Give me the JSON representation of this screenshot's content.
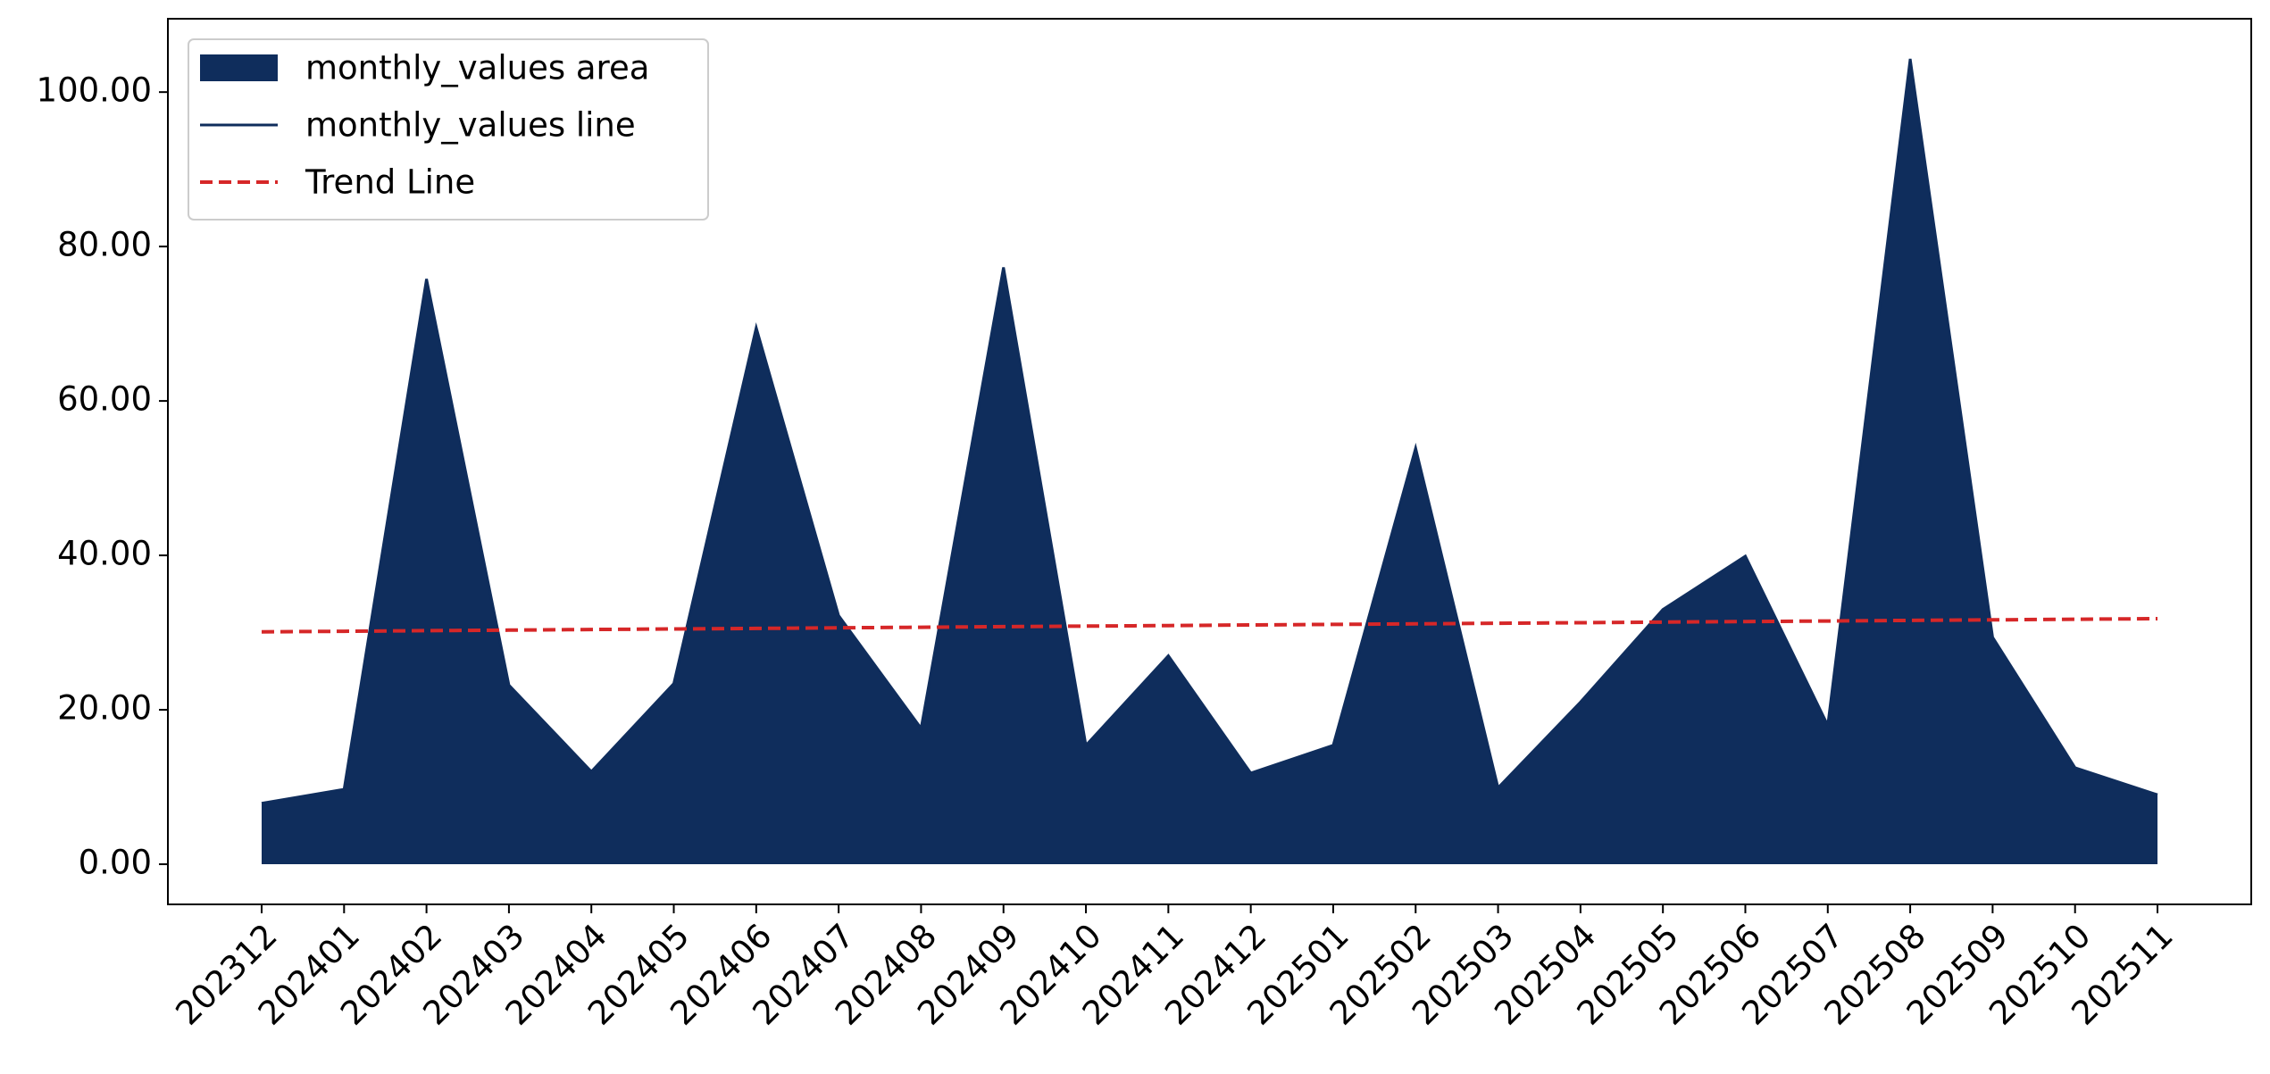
{
  "chart_data": {
    "type": "area",
    "categories": [
      "202312",
      "202401",
      "202402",
      "202403",
      "202404",
      "202405",
      "202406",
      "202407",
      "202408",
      "202409",
      "202410",
      "202411",
      "202412",
      "202501",
      "202502",
      "202503",
      "202504",
      "202505",
      "202506",
      "202507",
      "202508",
      "202509",
      "202510",
      "202511"
    ],
    "series": [
      {
        "name": "monthly_values area",
        "type": "area",
        "color": "#0f2d5c",
        "values": [
          7.9,
          9.7,
          75.8,
          23.2,
          12.0,
          23.4,
          69.5,
          32.2,
          17.6,
          77.3,
          15.4,
          27.0,
          11.8,
          15.4,
          53.9,
          9.9,
          21.0,
          33.0,
          39.9,
          18.0,
          104.3,
          29.4,
          12.5,
          9.0
        ]
      },
      {
        "name": "monthly_values line",
        "type": "line",
        "color": "#0f2d5c",
        "values": [
          7.9,
          9.7,
          75.8,
          23.2,
          12.0,
          23.4,
          69.5,
          32.2,
          17.6,
          77.3,
          15.4,
          27.0,
          11.8,
          15.4,
          53.9,
          9.9,
          21.0,
          33.0,
          39.9,
          18.0,
          104.3,
          29.4,
          12.5,
          9.0
        ]
      },
      {
        "name": "Trend Line",
        "type": "line",
        "dashed": true,
        "color": "#d62728",
        "values": [
          30.1,
          30.17,
          30.25,
          30.32,
          30.4,
          30.47,
          30.54,
          30.62,
          30.69,
          30.77,
          30.84,
          30.91,
          30.99,
          31.06,
          31.13,
          31.21,
          31.28,
          31.36,
          31.43,
          31.5,
          31.58,
          31.65,
          31.73,
          31.8
        ]
      }
    ],
    "ylim": [
      -5.2,
      109.5
    ],
    "yticks": [
      {
        "value": 0,
        "label": "0.00"
      },
      {
        "value": 20,
        "label": "20.00"
      },
      {
        "value": 40,
        "label": "40.00"
      },
      {
        "value": 60,
        "label": "60.00"
      },
      {
        "value": 80,
        "label": "80.00"
      },
      {
        "value": 100,
        "label": "100.00"
      }
    ],
    "grid": false,
    "legend": "upper left"
  }
}
